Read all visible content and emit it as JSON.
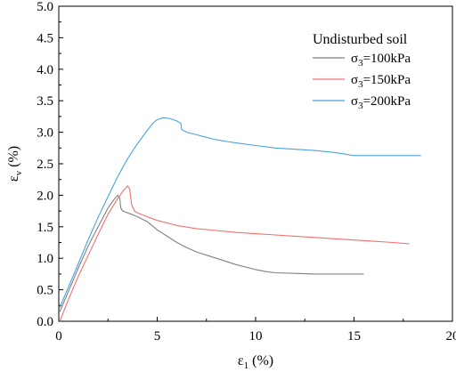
{
  "chart_data": {
    "type": "line",
    "title": "",
    "xlabel": {
      "main": "ε",
      "sub": "1",
      "unit": " (%)"
    },
    "ylabel": {
      "main": "ε",
      "sub": "v",
      "unit": " (%)"
    },
    "xlim": [
      0,
      20
    ],
    "ylim": [
      0,
      5.0
    ],
    "xticks": [
      0,
      5,
      10,
      15,
      20
    ],
    "xtick_labels": [
      "0",
      "5",
      "10",
      "15",
      "20"
    ],
    "yticks": [
      0,
      0.5,
      1.0,
      1.5,
      2.0,
      2.5,
      3.0,
      3.5,
      4.0,
      4.5,
      5.0
    ],
    "ytick_labels": [
      "0.0",
      "0.5",
      "1.0",
      "1.5",
      "2.0",
      "2.5",
      "3.0",
      "3.5",
      "4.0",
      "4.5",
      "5.0"
    ],
    "grid": false,
    "legend": {
      "title": "Undisturbed soil",
      "placement": "top-right",
      "entries": [
        {
          "main": "σ",
          "sub": "3",
          "rest": "=100kPa"
        },
        {
          "main": "σ",
          "sub": "3",
          "rest": "=150kPa"
        },
        {
          "main": "σ",
          "sub": "3",
          "rest": "=200kPa"
        }
      ]
    },
    "series": [
      {
        "color": "#808080",
        "points": [
          [
            0.05,
            0.15
          ],
          [
            0.5,
            0.48
          ],
          [
            1.0,
            0.85
          ],
          [
            1.5,
            1.2
          ],
          [
            2.0,
            1.5
          ],
          [
            2.5,
            1.8
          ],
          [
            2.85,
            1.95
          ],
          [
            3.0,
            2.0
          ],
          [
            3.1,
            1.95
          ],
          [
            3.15,
            1.8
          ],
          [
            3.25,
            1.75
          ],
          [
            3.5,
            1.72
          ],
          [
            4.0,
            1.66
          ],
          [
            4.5,
            1.58
          ],
          [
            5.0,
            1.45
          ],
          [
            5.5,
            1.35
          ],
          [
            6.0,
            1.25
          ],
          [
            6.5,
            1.17
          ],
          [
            7.0,
            1.1
          ],
          [
            7.5,
            1.05
          ],
          [
            8.0,
            1.0
          ],
          [
            8.5,
            0.95
          ],
          [
            9.0,
            0.9
          ],
          [
            9.5,
            0.86
          ],
          [
            10.0,
            0.82
          ],
          [
            10.5,
            0.79
          ],
          [
            11.0,
            0.77
          ],
          [
            12.0,
            0.76
          ],
          [
            13.0,
            0.75
          ],
          [
            14.0,
            0.75
          ],
          [
            15.0,
            0.75
          ],
          [
            15.5,
            0.75
          ]
        ]
      },
      {
        "color": "#f07070",
        "points": [
          [
            0.05,
            0.0
          ],
          [
            0.5,
            0.35
          ],
          [
            1.0,
            0.72
          ],
          [
            1.5,
            1.05
          ],
          [
            2.0,
            1.38
          ],
          [
            2.5,
            1.7
          ],
          [
            3.0,
            1.95
          ],
          [
            3.3,
            2.08
          ],
          [
            3.5,
            2.15
          ],
          [
            3.6,
            2.1
          ],
          [
            3.7,
            1.85
          ],
          [
            3.85,
            1.75
          ],
          [
            4.0,
            1.72
          ],
          [
            4.5,
            1.66
          ],
          [
            5.0,
            1.6
          ],
          [
            6.0,
            1.52
          ],
          [
            7.0,
            1.47
          ],
          [
            8.0,
            1.44
          ],
          [
            9.0,
            1.41
          ],
          [
            10.0,
            1.39
          ],
          [
            11.0,
            1.37
          ],
          [
            12.0,
            1.35
          ],
          [
            13.0,
            1.33
          ],
          [
            14.0,
            1.31
          ],
          [
            15.0,
            1.29
          ],
          [
            16.0,
            1.27
          ],
          [
            17.0,
            1.25
          ],
          [
            17.8,
            1.23
          ]
        ]
      },
      {
        "color": "#4aa3df",
        "points": [
          [
            0.05,
            0.22
          ],
          [
            0.5,
            0.55
          ],
          [
            1.0,
            0.92
          ],
          [
            1.5,
            1.3
          ],
          [
            2.0,
            1.65
          ],
          [
            2.5,
            1.98
          ],
          [
            3.0,
            2.3
          ],
          [
            3.5,
            2.58
          ],
          [
            4.0,
            2.82
          ],
          [
            4.5,
            3.03
          ],
          [
            4.8,
            3.15
          ],
          [
            5.0,
            3.2
          ],
          [
            5.3,
            3.23
          ],
          [
            5.6,
            3.22
          ],
          [
            6.0,
            3.18
          ],
          [
            6.2,
            3.14
          ],
          [
            6.25,
            3.04
          ],
          [
            6.5,
            3.0
          ],
          [
            7.0,
            2.96
          ],
          [
            7.5,
            2.92
          ],
          [
            8.0,
            2.88
          ],
          [
            9.0,
            2.83
          ],
          [
            10.0,
            2.79
          ],
          [
            11.0,
            2.75
          ],
          [
            12.0,
            2.73
          ],
          [
            13.0,
            2.71
          ],
          [
            14.0,
            2.68
          ],
          [
            15.0,
            2.63
          ],
          [
            16.0,
            2.63
          ],
          [
            17.0,
            2.63
          ],
          [
            18.0,
            2.63
          ],
          [
            18.4,
            2.63
          ]
        ]
      }
    ]
  }
}
